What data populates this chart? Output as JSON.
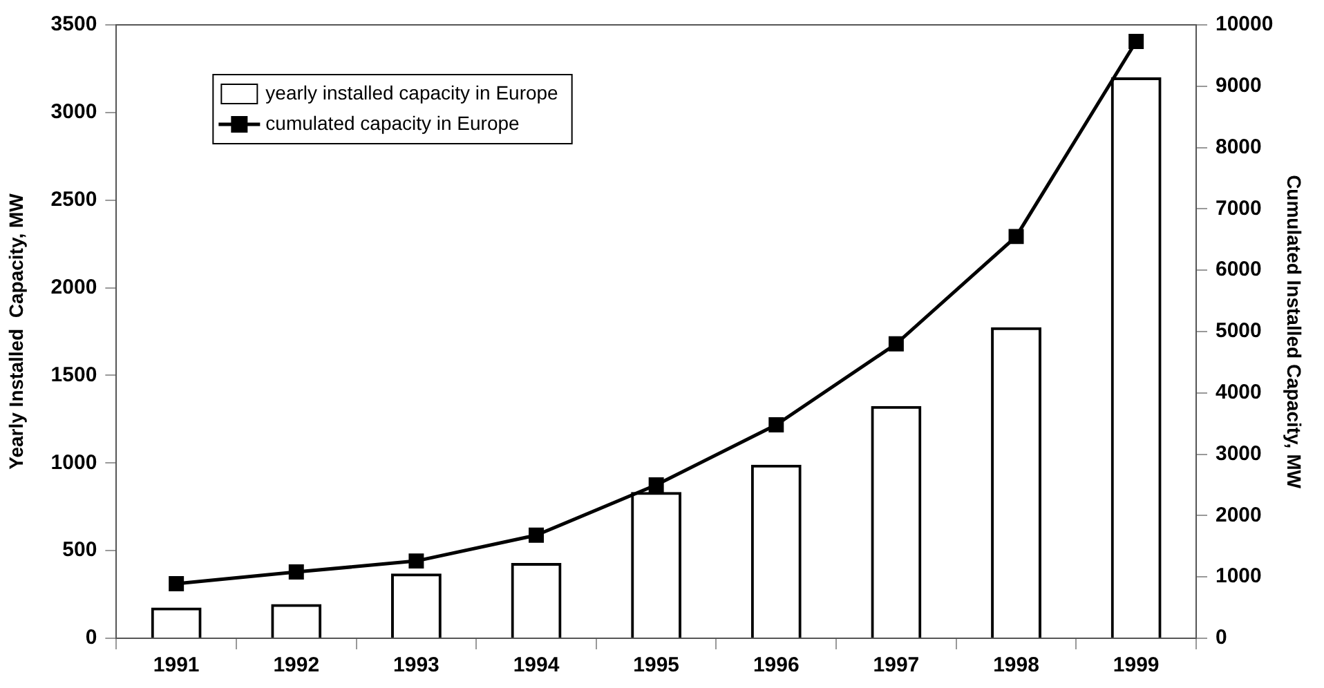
{
  "chart_data": {
    "type": "bar",
    "categories": [
      "1991",
      "1992",
      "1993",
      "1994",
      "1995",
      "1996",
      "1997",
      "1998",
      "1999"
    ],
    "series": [
      {
        "name": "yearly installed capacity in Europe",
        "color": "#000000",
        "values": [
          175,
          195,
          370,
          430,
          835,
          990,
          1325,
          1775,
          3200
        ]
      },
      {
        "name": "cumulated capacity in Europe",
        "type": "line",
        "axis": "y2",
        "color": "#000000",
        "values": [
          890,
          1080,
          1260,
          1680,
          2500,
          3480,
          4800,
          6550,
          9730
        ]
      }
    ],
    "ylabel": "Yearly Installed  Capacity, MW",
    "y2label": "Cumulated Installed Capacity, MW",
    "ylim": [
      0,
      3500
    ],
    "yticks": [
      0,
      500,
      1000,
      1500,
      2000,
      2500,
      3000,
      3500
    ],
    "y2lim": [
      0,
      10000
    ],
    "y2ticks": [
      0,
      1000,
      2000,
      3000,
      4000,
      5000,
      6000,
      7000,
      8000,
      9000,
      10000
    ],
    "marker": "square",
    "legend": "top left",
    "grid": false
  }
}
